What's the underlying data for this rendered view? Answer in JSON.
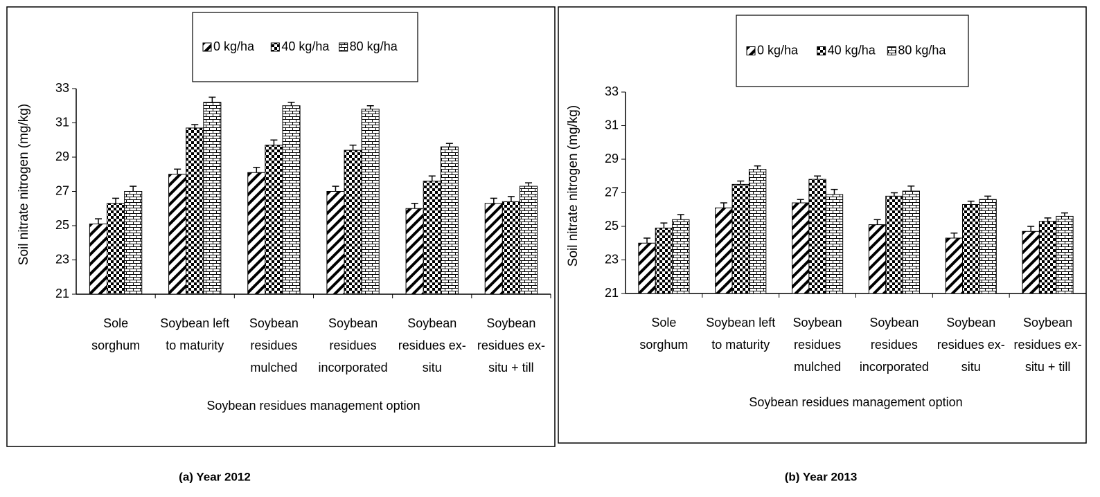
{
  "chart_data": [
    {
      "type": "bar",
      "caption": "(a)  Year 2012",
      "x_label": "Soybean residues management option",
      "y_label": "Soil nitrate nitrogen  (mg/kg)",
      "categories": [
        [
          "Sole",
          "sorghum"
        ],
        [
          "Soybean left",
          "to maturity"
        ],
        [
          "Soybean",
          "residues",
          "mulched"
        ],
        [
          "Soybean",
          "residues",
          "incorporated"
        ],
        [
          "Soybean",
          "residues ex-",
          "situ"
        ],
        [
          "Soybean",
          "residues ex-",
          "situ + till"
        ]
      ],
      "series": [
        {
          "name": "0 kg/ha",
          "color": "#000000",
          "pattern": "diagonal",
          "values": [
            25.1,
            28.0,
            28.1,
            27.0,
            26.0,
            26.3
          ],
          "errors": [
            0.3,
            0.3,
            0.3,
            0.3,
            0.3,
            0.3
          ]
        },
        {
          "name": "40 kg/ha",
          "color": "#000000",
          "pattern": "checker",
          "values": [
            26.3,
            30.7,
            29.7,
            29.4,
            27.6,
            26.4
          ],
          "errors": [
            0.3,
            0.2,
            0.3,
            0.3,
            0.3,
            0.3
          ]
        },
        {
          "name": "80 kg/ha",
          "color": "#000000",
          "pattern": "brick",
          "values": [
            27.0,
            32.2,
            32.0,
            31.8,
            29.6,
            27.3
          ],
          "errors": [
            0.3,
            0.3,
            0.2,
            0.2,
            0.2,
            0.2
          ]
        }
      ],
      "ylim": [
        21,
        33
      ],
      "yticks": [
        21,
        23,
        25,
        27,
        29,
        31,
        33
      ]
    },
    {
      "type": "bar",
      "caption": "(b) Year 2013",
      "x_label": "Soybean residues management option",
      "y_label": "Soil nitrate nitrogen  (mg/kg)",
      "categories": [
        [
          "Sole",
          "sorghum"
        ],
        [
          "Soybean left",
          "to maturity"
        ],
        [
          "Soybean",
          "residues",
          "mulched"
        ],
        [
          "Soybean",
          "residues",
          "incorporated"
        ],
        [
          "Soybean",
          "residues ex-",
          "situ"
        ],
        [
          "Soybean",
          "residues ex-",
          "situ + till"
        ]
      ],
      "series": [
        {
          "name": "0 kg/ha",
          "color": "#000000",
          "pattern": "diagonal",
          "values": [
            24.0,
            26.1,
            26.4,
            25.1,
            24.3,
            24.7
          ],
          "errors": [
            0.3,
            0.3,
            0.2,
            0.3,
            0.3,
            0.3
          ]
        },
        {
          "name": "40 kg/ha",
          "color": "#000000",
          "pattern": "checker",
          "values": [
            24.9,
            27.5,
            27.8,
            26.8,
            26.3,
            25.3
          ],
          "errors": [
            0.3,
            0.2,
            0.2,
            0.2,
            0.2,
            0.2
          ]
        },
        {
          "name": "80 kg/ha",
          "color": "#000000",
          "pattern": "brick",
          "values": [
            25.4,
            28.4,
            26.9,
            27.1,
            26.6,
            25.6
          ],
          "errors": [
            0.3,
            0.2,
            0.3,
            0.3,
            0.2,
            0.2
          ]
        }
      ],
      "ylim": [
        21,
        33
      ],
      "yticks": [
        21,
        23,
        25,
        27,
        29,
        31,
        33
      ]
    }
  ]
}
